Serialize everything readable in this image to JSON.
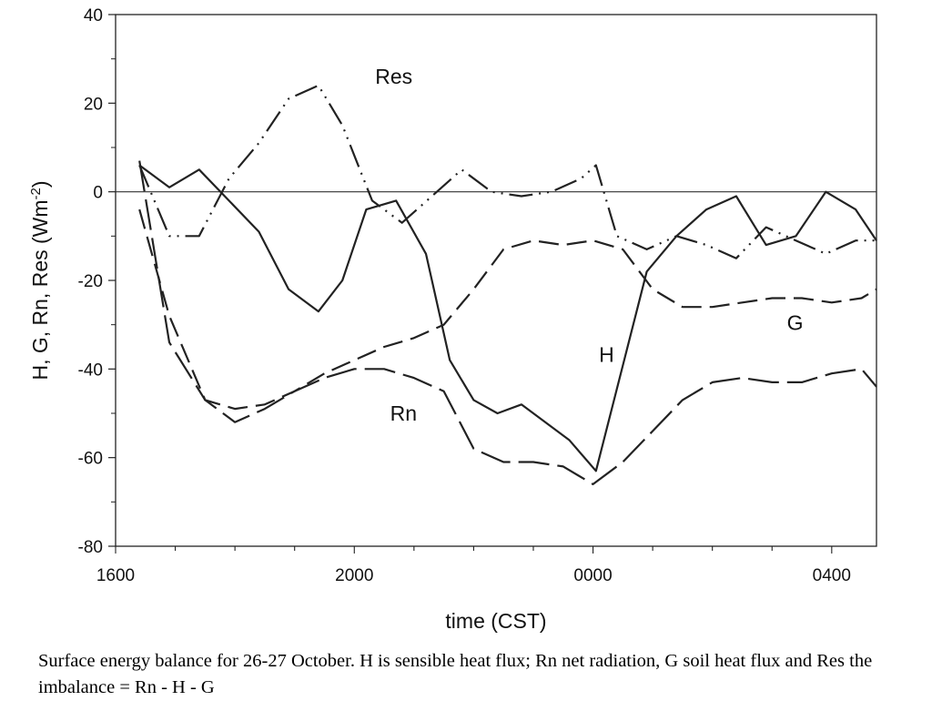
{
  "caption": "Surface energy balance for 26-27 October. H is sensible heat flux; Rn net radiation, G soil heat flux and Res the imbalance = Rn - H - G",
  "chart_data": {
    "type": "line",
    "xlabel": "time (CST)",
    "ylabel_main": "H, G, Rn, Res (Wm",
    "ylabel_sup": "-2",
    "ylabel_close": ")",
    "ylim": [
      -80,
      40
    ],
    "yticks": [
      -80,
      -60,
      -40,
      -20,
      0,
      20,
      40
    ],
    "ytick_labels": [
      "-80",
      "-60",
      "-40",
      "-20",
      "0",
      "20",
      "40"
    ],
    "xlim": [
      16.0,
      28.75
    ],
    "xticks": [
      16,
      20,
      24,
      28
    ],
    "xtick_labels": [
      "1600",
      "2000",
      "0000",
      "0400"
    ],
    "zero_line": true,
    "grid": false,
    "legend": "none",
    "series": [
      {
        "name": "H",
        "style": "solid",
        "x": [
          16.4,
          16.9,
          17.4,
          17.9,
          18.4,
          18.9,
          19.4,
          19.8,
          20.2,
          20.7,
          21.2,
          21.6,
          22.0,
          22.4,
          22.8,
          23.2,
          23.6,
          24.05,
          24.9,
          25.4,
          25.9,
          26.4,
          26.9,
          27.4,
          27.9,
          28.4,
          28.75
        ],
        "y": [
          6,
          1,
          5,
          -2,
          -9,
          -22,
          -27,
          -20,
          -4,
          -2,
          -14,
          -38,
          -47,
          -50,
          -48,
          -52,
          -56,
          -63,
          -18,
          -10,
          -4,
          -1,
          -12,
          -10,
          0,
          -4,
          -11
        ]
      },
      {
        "name": "G",
        "style": "dash",
        "x": [
          16.4,
          16.9,
          17.5,
          18.0,
          18.5,
          19.0,
          19.5,
          20.0,
          20.5,
          21.0,
          21.5,
          22.0,
          22.5,
          23.0,
          23.5,
          24.0,
          24.5,
          25.0,
          25.5,
          26.0,
          26.5,
          27.0,
          27.5,
          28.0,
          28.5,
          28.75
        ],
        "y": [
          -4,
          -28,
          -47,
          -49,
          -48,
          -45,
          -41,
          -38,
          -35,
          -33,
          -30,
          -22,
          -13,
          -11,
          -12,
          -11,
          -13,
          -22,
          -26,
          -26,
          -25,
          -24,
          -24,
          -25,
          -24,
          -22
        ]
      },
      {
        "name": "Rn",
        "style": "longdash",
        "x": [
          16.4,
          16.9,
          17.5,
          18.0,
          18.5,
          19.0,
          19.5,
          20.0,
          20.5,
          21.0,
          21.5,
          22.0,
          22.5,
          23.0,
          23.5,
          24.0,
          24.5,
          25.0,
          25.5,
          26.0,
          26.5,
          27.0,
          27.5,
          28.0,
          28.5,
          28.75
        ],
        "y": [
          7,
          -34,
          -47,
          -52,
          -49,
          -45,
          -42,
          -40,
          -40,
          -42,
          -45,
          -58,
          -61,
          -61,
          -62,
          -66,
          -61,
          -54,
          -47,
          -43,
          -42,
          -43,
          -43,
          -41,
          -40,
          -44
        ]
      },
      {
        "name": "Res",
        "style": "dashdot",
        "x": [
          16.4,
          16.9,
          17.4,
          17.9,
          18.4,
          18.9,
          19.4,
          19.8,
          20.3,
          20.8,
          21.3,
          21.8,
          22.3,
          22.8,
          23.3,
          23.8,
          24.05,
          24.4,
          24.9,
          25.4,
          25.9,
          26.4,
          26.9,
          27.4,
          27.9,
          28.4,
          28.75
        ],
        "y": [
          6,
          -10,
          -10,
          3,
          11,
          21,
          24,
          15,
          -2,
          -7,
          -1,
          5,
          0,
          -1,
          0,
          3,
          6,
          -10,
          -13,
          -10,
          -12,
          -15,
          -8,
          -11,
          -14,
          -11,
          -11
        ]
      }
    ],
    "annotations": [
      {
        "text": "Res",
        "x": 20.35,
        "y": 24.4
      },
      {
        "text": "H",
        "x": 24.1,
        "y": -38.4
      },
      {
        "text": "Rn",
        "x": 20.6,
        "y": -51.6
      },
      {
        "text": "G",
        "x": 27.25,
        "y": -31.2
      }
    ]
  }
}
